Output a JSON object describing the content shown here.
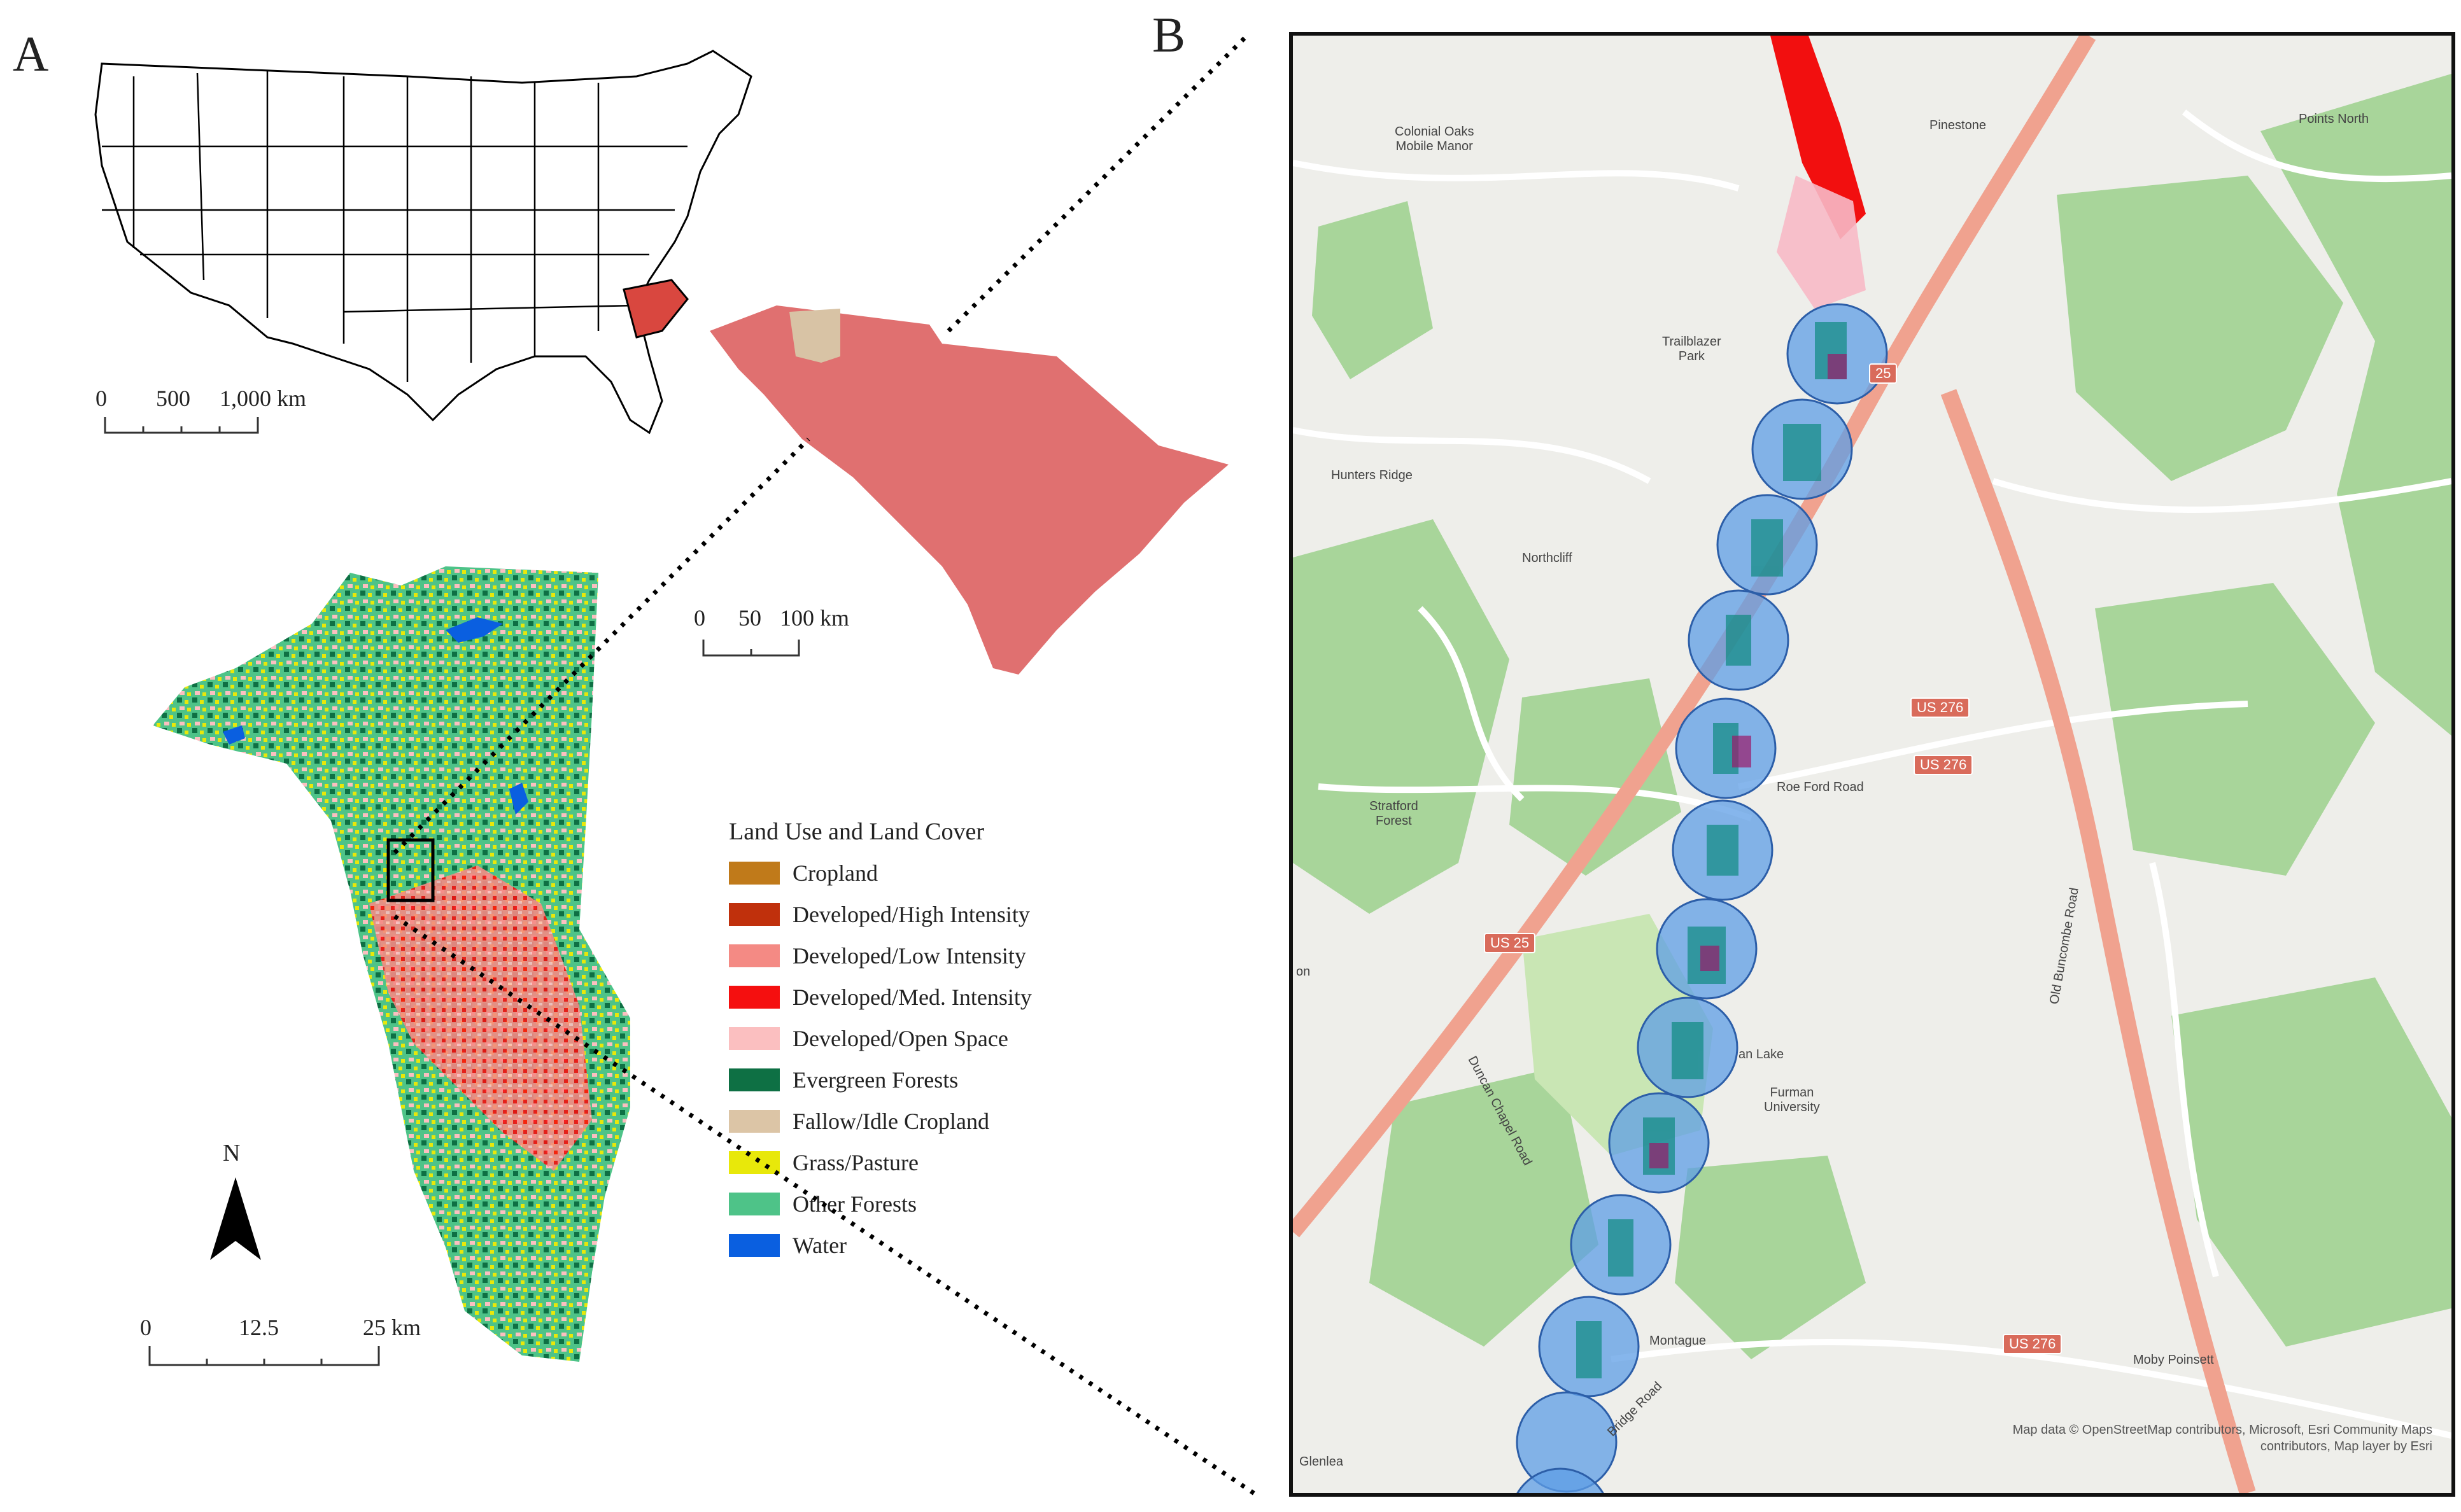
{
  "panels": {
    "a_label": "A",
    "b_label": "B"
  },
  "us_map": {
    "scale_ticks": [
      "0",
      "500",
      "1,000 km"
    ],
    "highlight_color": "#d9473f"
  },
  "sc_map": {
    "scale_ticks": [
      "0",
      "50",
      "100 km"
    ],
    "fill_color": "#e07070",
    "inset_color": "#d8c3a5"
  },
  "county_map": {
    "scale_ticks": [
      "0",
      "12.5",
      "25 km"
    ],
    "north_label": "N"
  },
  "legend": {
    "title": "Land Use and Land Cover",
    "items": [
      {
        "label": "Cropland",
        "color": "#c07a1a"
      },
      {
        "label": "Developed/High Intensity",
        "color": "#c0300c"
      },
      {
        "label": "Developed/Low Intensity",
        "color": "#f48a84"
      },
      {
        "label": "Developed/Med. Intensity",
        "color": "#f50f0f"
      },
      {
        "label": "Developed/Open Space",
        "color": "#fbbfc0"
      },
      {
        "label": "Evergreen Forests",
        "color": "#0e7044"
      },
      {
        "label": "Fallow/Idle Cropland",
        "color": "#dcc5a6"
      },
      {
        "label": "Grass/Pasture",
        "color": "#e8e80a"
      },
      {
        "label": "Other Forests",
        "color": "#4ec388"
      },
      {
        "label": "Water",
        "color": "#0a5fe0"
      }
    ]
  },
  "detail_map": {
    "place_labels": {
      "colonial_oaks": "Colonial Oaks\nMobile Manor",
      "points_north": "Points North",
      "pinestone": "Pinestone",
      "trailblazer": "Trailblazer\nPark",
      "hunters_ridge": "Hunters Ridge",
      "northcliff": "Northcliff",
      "stratford": "Stratford\nForest",
      "roe_ford": "Roe Ford Road",
      "old_buncombe": "Old Buncombe Road",
      "duncan_chapel": "Duncan Chapel Road",
      "furman_lake": "an Lake",
      "furman_univ": "Furman\nUniversity",
      "montague": "Montague",
      "moby_poinsett": "Moby Poinsett",
      "glenlea": "Glenlea",
      "bridge_road": "Bridge Road",
      "on": "on"
    },
    "shields": {
      "us25_top": "25",
      "us276_a": "US 276",
      "us276_b": "US 276",
      "us25_b": "US 25",
      "us276_c": "US 276"
    },
    "attribution": "Map data © OpenStreetMap contributors, Microsoft, Esri Community Maps\ncontributors, Map layer by Esri"
  }
}
